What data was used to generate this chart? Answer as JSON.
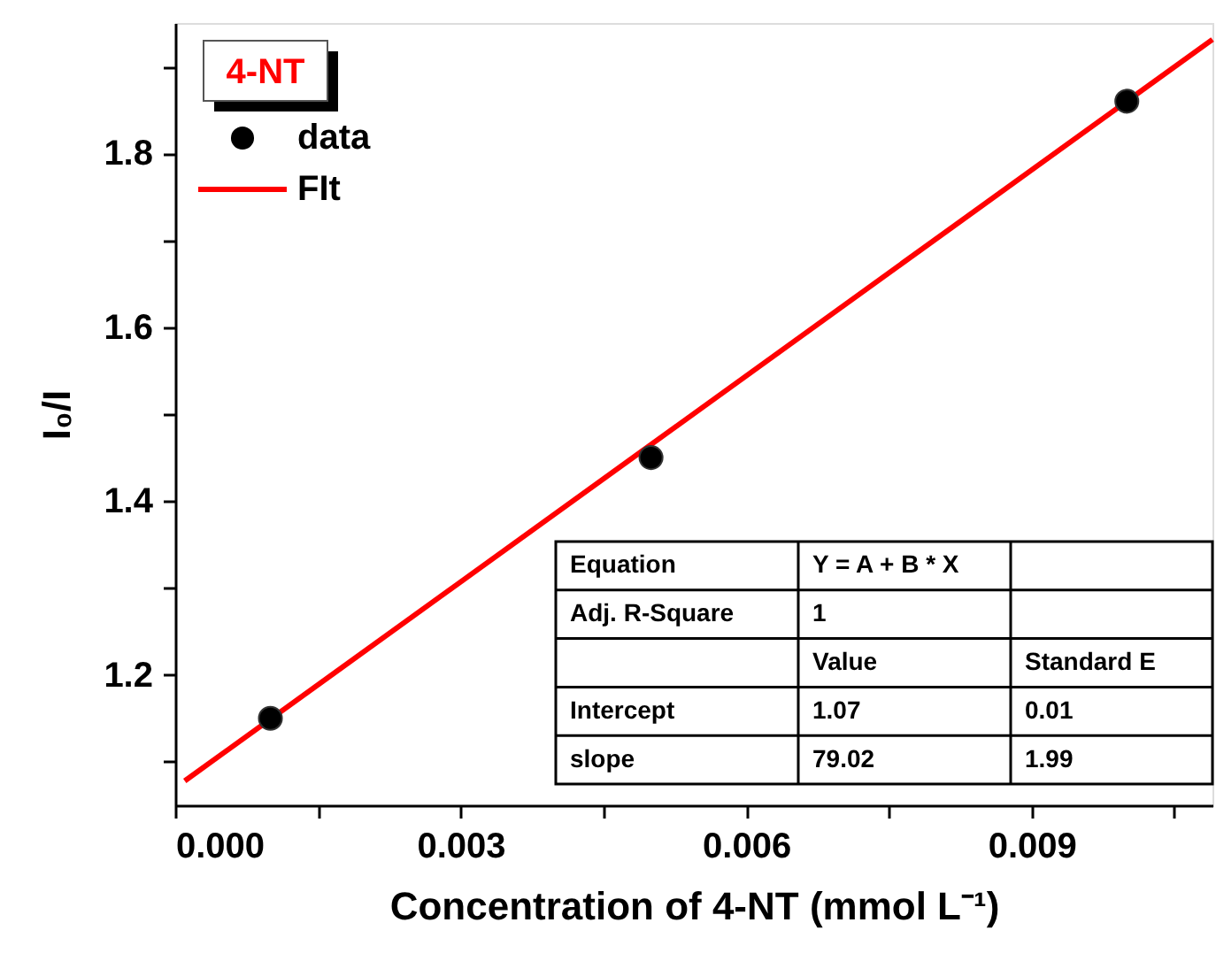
{
  "chart_data": {
    "type": "scatter",
    "xlabel": "Concentration of 4-NT (mmol L⁻¹)",
    "ylabel": "I₀/I",
    "legend_title": "4-NT",
    "legend": "top left",
    "grid": false,
    "xlim": [
      0,
      0.0109
    ],
    "ylim": [
      1.05,
      1.95
    ],
    "xticks": [
      {
        "value": 0,
        "label": "0.000"
      },
      {
        "value": 0.0015,
        "label": null
      },
      {
        "value": 0.003,
        "label": "0.003"
      },
      {
        "value": 0.0045,
        "label": null
      },
      {
        "value": 0.006,
        "label": "0.006"
      },
      {
        "value": 0.0075,
        "label": null
      },
      {
        "value": 0.009,
        "label": "0.009"
      },
      {
        "value": 0.0105,
        "label": null
      }
    ],
    "yticks": [
      {
        "value": 1.1,
        "label": null
      },
      1.2,
      {
        "value": 1.3,
        "label": null
      },
      1.4,
      {
        "value": 1.5,
        "label": null
      },
      1.6,
      {
        "value": 1.7,
        "label": null
      },
      1.8,
      {
        "value": 1.9,
        "label": null
      }
    ],
    "series": [
      {
        "name": "data",
        "color": "#000000",
        "marker": "circle",
        "x": [
          0.001,
          0.005,
          0.01
        ],
        "values": [
          1.15,
          1.45,
          1.86
        ]
      },
      {
        "name": "FIt",
        "type": "line",
        "color": "#ff0000",
        "line_style": "solid",
        "x": [
          0.0001,
          0.0109
        ],
        "values": [
          1.078,
          1.931
        ]
      }
    ],
    "annotations": [
      "Equation",
      "Y = A + B * X",
      "Adj. R-Square",
      "1",
      "Value",
      "Standard E",
      "Intercept",
      "1.07",
      "0.01",
      "slope",
      "79.02",
      "1.99"
    ]
  }
}
